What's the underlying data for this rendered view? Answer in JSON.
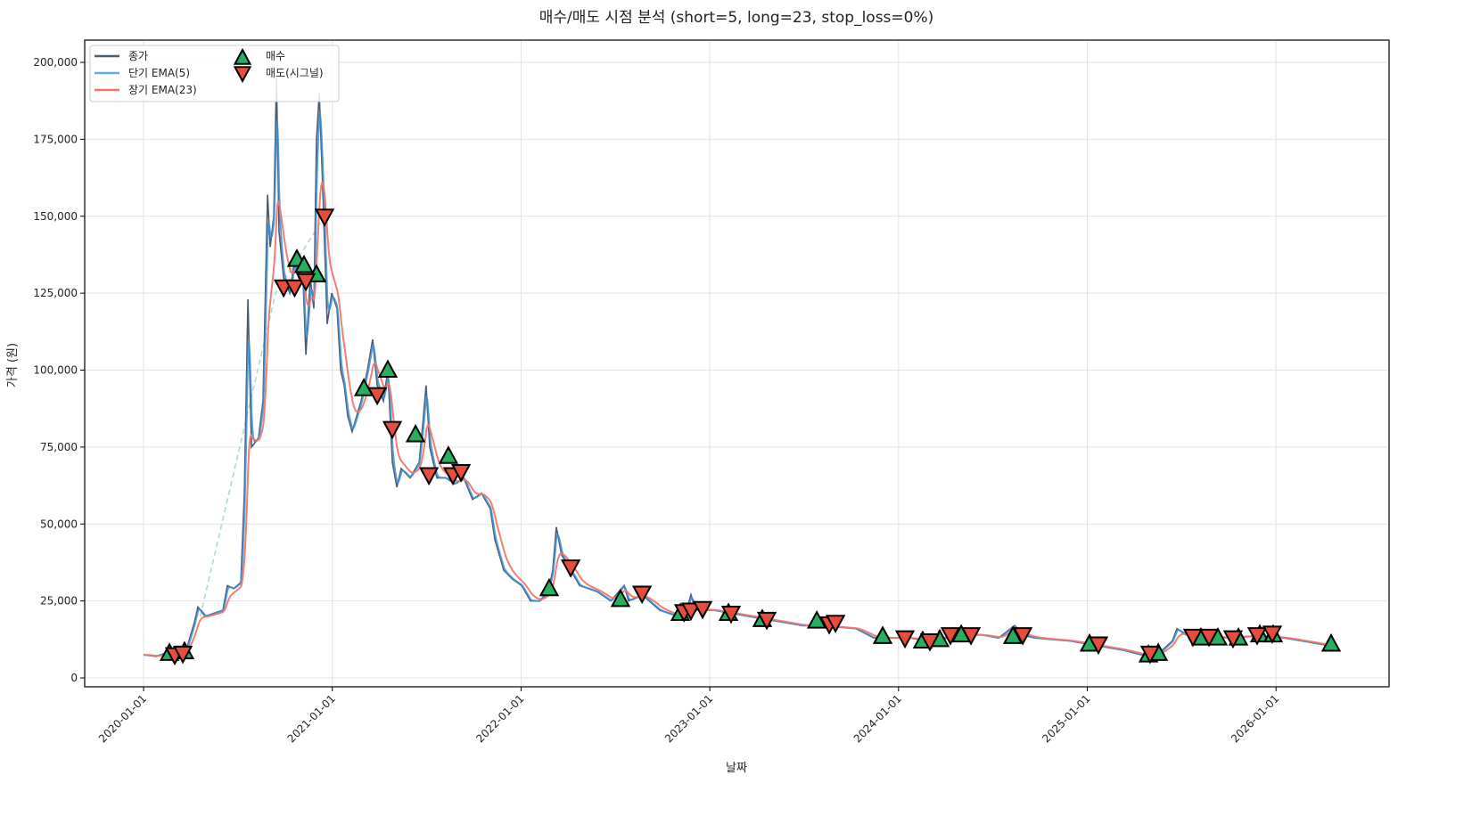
{
  "chart_data": {
    "type": "line",
    "title": "매수/매도 시점 분석 (short=5, long=23, stop_loss=0%)",
    "xlabel": "날짜",
    "ylabel": "가격 (원)",
    "xlim": [
      2019.688,
      2026.599
    ],
    "ylim": [
      -2894,
      207236
    ],
    "grid": true,
    "legend_position": "top-left",
    "x_ticks": [
      {
        "value": 2020,
        "label": "2020-01-01"
      },
      {
        "value": 2021,
        "label": "2021-01-01"
      },
      {
        "value": 2022,
        "label": "2022-01-01"
      },
      {
        "value": 2023,
        "label": "2023-01-01"
      },
      {
        "value": 2024,
        "label": "2024-01-01"
      },
      {
        "value": 2025,
        "label": "2025-01-01"
      },
      {
        "value": 2026,
        "label": "2026-01-01"
      }
    ],
    "y_ticks": [
      {
        "value": 0,
        "label": "0"
      },
      {
        "value": 25000,
        "label": "25,000"
      },
      {
        "value": 50000,
        "label": "50,000"
      },
      {
        "value": 75000,
        "label": "75,000"
      },
      {
        "value": 100000,
        "label": "100,000"
      },
      {
        "value": 125000,
        "label": "125,000"
      },
      {
        "value": 150000,
        "label": "150,000"
      },
      {
        "value": 175000,
        "label": "175,000"
      },
      {
        "value": 200000,
        "label": "200,000"
      }
    ],
    "legend": [
      {
        "label": "종가",
        "kind": "line",
        "color": "#4a5a70"
      },
      {
        "label": "단기 EMA(5)",
        "kind": "line",
        "color": "#5dade2"
      },
      {
        "label": "장기 EMA(23)",
        "kind": "line",
        "color": "#f1776b"
      },
      {
        "label": "매수",
        "kind": "marker-up",
        "color": "#27ae60"
      },
      {
        "label": "매도(시그널)",
        "kind": "marker-down",
        "color": "#e74c3c"
      }
    ],
    "colors": {
      "close": "#4a5a70",
      "ema_short": "#3d8fd1",
      "ema_long": "#f1776b",
      "buy": "#27ae60",
      "sell": "#e74c3c",
      "trade_link": "#a9dfc4"
    },
    "ema_short_span": 5,
    "ema_long_span": 23,
    "close": [
      [
        2020.0,
        7500
      ],
      [
        2020.066,
        7000
      ],
      [
        2020.113,
        8000
      ],
      [
        2020.184,
        8500
      ],
      [
        2020.231,
        10000
      ],
      [
        2020.269,
        18000
      ],
      [
        2020.288,
        23000
      ],
      [
        2020.326,
        20000
      ],
      [
        2020.373,
        21000
      ],
      [
        2020.42,
        22000
      ],
      [
        2020.444,
        30000
      ],
      [
        2020.477,
        29000
      ],
      [
        2020.515,
        31000
      ],
      [
        2020.534,
        60000
      ],
      [
        2020.553,
        123000
      ],
      [
        2020.572,
        75000
      ],
      [
        2020.609,
        78000
      ],
      [
        2020.633,
        90000
      ],
      [
        2020.657,
        157000
      ],
      [
        2020.671,
        140000
      ],
      [
        2020.69,
        150000
      ],
      [
        2020.704,
        195000
      ],
      [
        2020.718,
        145000
      ],
      [
        2020.742,
        130000
      ],
      [
        2020.775,
        125000
      ],
      [
        2020.798,
        135000
      ],
      [
        2020.822,
        130000
      ],
      [
        2020.846,
        128000
      ],
      [
        2020.86,
        105000
      ],
      [
        2020.883,
        130000
      ],
      [
        2020.902,
        120000
      ],
      [
        2020.916,
        175000
      ],
      [
        2020.931,
        190000
      ],
      [
        2020.949,
        160000
      ],
      [
        2020.973,
        115000
      ],
      [
        2020.997,
        125000
      ],
      [
        2021.025,
        120000
      ],
      [
        2021.044,
        100000
      ],
      [
        2021.063,
        95000
      ],
      [
        2021.082,
        85000
      ],
      [
        2021.105,
        80000
      ],
      [
        2021.129,
        85000
      ],
      [
        2021.153,
        90000
      ],
      [
        2021.186,
        100000
      ],
      [
        2021.214,
        110000
      ],
      [
        2021.238,
        95000
      ],
      [
        2021.271,
        90000
      ],
      [
        2021.294,
        100000
      ],
      [
        2021.318,
        70000
      ],
      [
        2021.342,
        62000
      ],
      [
        2021.365,
        68000
      ],
      [
        2021.412,
        65000
      ],
      [
        2021.46,
        70000
      ],
      [
        2021.483,
        85000
      ],
      [
        2021.497,
        95000
      ],
      [
        2021.516,
        75000
      ],
      [
        2021.554,
        65000
      ],
      [
        2021.601,
        65000
      ],
      [
        2021.648,
        63000
      ],
      [
        2021.696,
        65000
      ],
      [
        2021.743,
        58000
      ],
      [
        2021.79,
        60000
      ],
      [
        2021.837,
        55000
      ],
      [
        2021.861,
        45000
      ],
      [
        2021.908,
        35000
      ],
      [
        2021.956,
        32000
      ],
      [
        2022.003,
        30000
      ],
      [
        2022.05,
        25000
      ],
      [
        2022.097,
        25000
      ],
      [
        2022.144,
        28000
      ],
      [
        2022.168,
        35000
      ],
      [
        2022.187,
        49000
      ],
      [
        2022.215,
        40000
      ],
      [
        2022.263,
        35000
      ],
      [
        2022.31,
        30000
      ],
      [
        2022.404,
        28000
      ],
      [
        2022.475,
        25000
      ],
      [
        2022.546,
        30000
      ],
      [
        2022.57,
        25000
      ],
      [
        2022.641,
        27000
      ],
      [
        2022.735,
        22000
      ],
      [
        2022.83,
        20000
      ],
      [
        2022.877,
        22000
      ],
      [
        2022.9,
        27000
      ],
      [
        2022.924,
        22000
      ],
      [
        2023.018,
        22000
      ],
      [
        2023.113,
        21000
      ],
      [
        2023.207,
        20000
      ],
      [
        2023.302,
        19000
      ],
      [
        2023.396,
        18000
      ],
      [
        2023.491,
        17000
      ],
      [
        2023.585,
        17000
      ],
      [
        2023.68,
        16500
      ],
      [
        2023.774,
        16000
      ],
      [
        2023.868,
        13000
      ],
      [
        2023.963,
        13000
      ],
      [
        2024.057,
        13000
      ],
      [
        2024.152,
        12000
      ],
      [
        2024.247,
        13000
      ],
      [
        2024.341,
        14000
      ],
      [
        2024.436,
        14000
      ],
      [
        2024.53,
        13000
      ],
      [
        2024.615,
        17000
      ],
      [
        2024.648,
        14000
      ],
      [
        2024.719,
        13000
      ],
      [
        2024.813,
        12500
      ],
      [
        2024.908,
        12000
      ],
      [
        2025.002,
        11000
      ],
      [
        2025.097,
        10000
      ],
      [
        2025.191,
        9000
      ],
      [
        2025.286,
        7500
      ],
      [
        2025.38,
        8000
      ],
      [
        2025.451,
        12000
      ],
      [
        2025.475,
        16000
      ],
      [
        2025.522,
        14000
      ],
      [
        2025.616,
        13500
      ],
      [
        2025.758,
        13000
      ],
      [
        2025.853,
        13500
      ],
      [
        2025.947,
        13500
      ],
      [
        2026.041,
        13000
      ],
      [
        2026.136,
        12000
      ],
      [
        2026.231,
        11000
      ],
      [
        2026.278,
        10500
      ]
    ],
    "trade_link": [
      [
        2020.3,
        20000
      ],
      [
        2020.7,
        125000
      ],
      [
        2020.96,
        150000
      ]
    ],
    "buy_points": [
      [
        2020.137,
        8000
      ],
      [
        2020.217,
        8500
      ],
      [
        2020.812,
        136000
      ],
      [
        2020.85,
        134000
      ],
      [
        2020.916,
        131000
      ],
      [
        2021.167,
        94000
      ],
      [
        2021.294,
        100000
      ],
      [
        2021.441,
        79000
      ],
      [
        2021.615,
        72000
      ],
      [
        2022.149,
        29000
      ],
      [
        2022.527,
        25500
      ],
      [
        2022.844,
        21000
      ],
      [
        2023.099,
        21000
      ],
      [
        2023.278,
        19000
      ],
      [
        2023.567,
        18500
      ],
      [
        2023.916,
        13500
      ],
      [
        2024.128,
        12000
      ],
      [
        2024.218,
        12500
      ],
      [
        2024.332,
        14000
      ],
      [
        2024.606,
        13500
      ],
      [
        2025.012,
        11000
      ],
      [
        2025.324,
        7500
      ],
      [
        2025.376,
        8000
      ],
      [
        2025.602,
        13000
      ],
      [
        2025.692,
        13000
      ],
      [
        2025.801,
        13000
      ],
      [
        2025.914,
        14000
      ],
      [
        2025.985,
        14000
      ],
      [
        2026.292,
        11000
      ]
    ],
    "sell_points": [
      [
        2020.165,
        7500
      ],
      [
        2020.208,
        8000
      ],
      [
        2020.742,
        127000
      ],
      [
        2020.8,
        127000
      ],
      [
        2020.86,
        129000
      ],
      [
        2020.959,
        150000
      ],
      [
        2021.238,
        92000
      ],
      [
        2021.318,
        81000
      ],
      [
        2021.512,
        66000
      ],
      [
        2021.639,
        66000
      ],
      [
        2021.682,
        67000
      ],
      [
        2022.263,
        36000
      ],
      [
        2022.641,
        27500
      ],
      [
        2022.863,
        21500
      ],
      [
        2022.9,
        22000
      ],
      [
        2022.962,
        22500
      ],
      [
        2023.113,
        21000
      ],
      [
        2023.302,
        19000
      ],
      [
        2023.633,
        17500
      ],
      [
        2023.666,
        18000
      ],
      [
        2024.034,
        13000
      ],
      [
        2024.166,
        12000
      ],
      [
        2024.275,
        14000
      ],
      [
        2024.384,
        14000
      ],
      [
        2024.658,
        14000
      ],
      [
        2025.059,
        11000
      ],
      [
        2025.333,
        8000
      ],
      [
        2025.56,
        13500
      ],
      [
        2025.645,
        13500
      ],
      [
        2025.772,
        13000
      ],
      [
        2025.9,
        14000
      ],
      [
        2025.98,
        14500
      ]
    ]
  }
}
